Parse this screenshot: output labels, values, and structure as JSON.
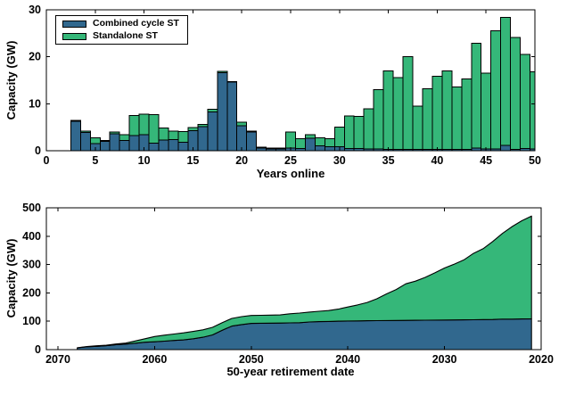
{
  "colors": {
    "combined_cycle": "#31688e",
    "standalone": "#35b779",
    "edge": "#000000",
    "background": "#ffffff",
    "text": "#000000"
  },
  "top_chart": {
    "ylabel": "Capacity (GW)",
    "xlabel": "Years online",
    "ylim": [
      0,
      30
    ],
    "yticks": [
      0,
      10,
      20,
      30
    ],
    "xlim": [
      0,
      50
    ],
    "xticks": [
      0,
      5,
      10,
      15,
      20,
      25,
      30,
      35,
      40,
      45,
      50
    ],
    "legend": {
      "items": [
        {
          "label": "Combined cycle ST",
          "color_key": "combined_cycle"
        },
        {
          "label": "Standalone ST",
          "color_key": "standalone"
        }
      ]
    }
  },
  "bottom_chart": {
    "ylabel": "Capacity (GW)",
    "xlabel": "50-year retirement date",
    "ylim": [
      0,
      500
    ],
    "yticks": [
      0,
      100,
      200,
      300,
      400,
      500
    ],
    "xticks": [
      2070,
      2060,
      2050,
      2040,
      2030,
      2020
    ],
    "x_reversed": true
  },
  "chart_data": [
    {
      "type": "bar",
      "stacked": true,
      "title": "",
      "xlabel": "Years online",
      "ylabel": "Capacity (GW)",
      "xlim": [
        0,
        50
      ],
      "ylim": [
        0,
        30
      ],
      "legend_position": "top-left",
      "grid": false,
      "x": [
        3,
        4,
        5,
        6,
        7,
        8,
        9,
        10,
        11,
        12,
        13,
        14,
        15,
        16,
        17,
        18,
        19,
        20,
        21,
        22,
        23,
        24,
        25,
        26,
        27,
        28,
        29,
        30,
        31,
        32,
        33,
        34,
        35,
        36,
        37,
        38,
        39,
        40,
        41,
        42,
        43,
        44,
        45,
        46,
        47,
        48,
        49,
        50
      ],
      "series": [
        {
          "name": "Combined cycle ST",
          "values": [
            6.3,
            3.9,
            1.5,
            2.0,
            3.6,
            2.2,
            3.2,
            3.4,
            1.6,
            2.3,
            2.4,
            1.8,
            4.3,
            5.1,
            8.3,
            16.6,
            14.6,
            5.3,
            4.0,
            0.6,
            0.4,
            0.4,
            0.6,
            0.5,
            2.7,
            1.0,
            0.9,
            0.9,
            0.5,
            0.5,
            0.4,
            0.4,
            0.3,
            0.3,
            0.3,
            0.3,
            0.3,
            0.3,
            0.3,
            0.3,
            0.3,
            0.6,
            0.4,
            0.4,
            1.1,
            0.3,
            0.5,
            0.4
          ]
        },
        {
          "name": "Standalone ST",
          "values": [
            0.2,
            0.3,
            1.3,
            0.2,
            0.4,
            1.2,
            4.3,
            4.4,
            6.1,
            2.5,
            1.8,
            2.3,
            0.6,
            0.5,
            0.5,
            0.3,
            0.1,
            0.8,
            0.2,
            0.2,
            0.2,
            0.2,
            3.4,
            2.1,
            0.7,
            1.8,
            1.7,
            4.1,
            6.9,
            6.8,
            8.5,
            12.6,
            16.7,
            15.3,
            19.7,
            9.2,
            12.9,
            15.6,
            16.7,
            13.3,
            15.0,
            22.3,
            16.1,
            25.1,
            27.3,
            23.8,
            20.0,
            16.4
          ]
        }
      ]
    },
    {
      "type": "area",
      "stacked": true,
      "title": "",
      "xlabel": "50-year retirement date",
      "ylabel": "Capacity (GW)",
      "ylim": [
        0,
        500
      ],
      "x_reversed": true,
      "grid": false,
      "x": [
        2068,
        2067,
        2066,
        2065,
        2064,
        2063,
        2062,
        2061,
        2060,
        2059,
        2058,
        2057,
        2056,
        2055,
        2054,
        2053,
        2052,
        2051,
        2050,
        2049,
        2048,
        2047,
        2046,
        2045,
        2044,
        2043,
        2042,
        2041,
        2040,
        2039,
        2038,
        2037,
        2036,
        2035,
        2034,
        2033,
        2032,
        2031,
        2030,
        2029,
        2028,
        2027,
        2026,
        2025,
        2024,
        2023,
        2022,
        2021
      ],
      "series": [
        {
          "name": "Combined cycle ST",
          "values": [
            6.3,
            10.2,
            11.7,
            13.7,
            17.3,
            19.5,
            22.7,
            26.1,
            27.7,
            30.0,
            32.4,
            34.2,
            38.5,
            43.6,
            51.9,
            68.5,
            83.1,
            88.4,
            92.4,
            93.0,
            93.4,
            93.8,
            94.4,
            94.9,
            97.6,
            98.6,
            99.5,
            100.4,
            100.9,
            101.4,
            101.8,
            102.2,
            102.5,
            102.8,
            103.1,
            103.4,
            103.7,
            104.0,
            104.3,
            104.6,
            104.9,
            105.5,
            105.9,
            106.3,
            107.4,
            107.7,
            108.2,
            108.6
          ]
        },
        {
          "name": "Standalone ST",
          "values": [
            0.2,
            0.5,
            1.8,
            2.0,
            2.4,
            3.6,
            7.9,
            12.3,
            18.4,
            20.9,
            22.7,
            25.0,
            25.6,
            26.1,
            26.6,
            26.9,
            27.0,
            27.8,
            28.0,
            28.2,
            28.4,
            28.6,
            32.0,
            34.1,
            34.8,
            36.6,
            38.3,
            42.4,
            49.3,
            56.1,
            64.6,
            77.2,
            93.9,
            109.2,
            128.9,
            138.1,
            151.0,
            166.6,
            183.3,
            196.6,
            211.6,
            233.9,
            250.0,
            275.1,
            302.4,
            326.2,
            346.2,
            362.6
          ]
        }
      ]
    }
  ]
}
